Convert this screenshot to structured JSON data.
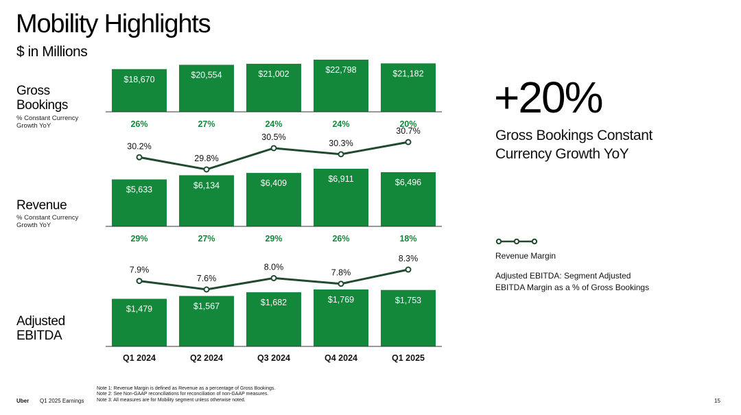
{
  "title": "Mobility Highlights",
  "subtitle": "$ in Millions",
  "colors": {
    "bar": "#13873a",
    "growth_text": "#13873a",
    "line": "#1f4a2e"
  },
  "rows": {
    "gross_bookings": {
      "label": "Gross Bookings",
      "sublabel": "% Constant Currency Growth YoY"
    },
    "revenue": {
      "label": "Revenue",
      "sublabel": "% Constant Currency Growth YoY"
    },
    "adjusted_ebitda": {
      "label": "Adjusted EBITDA"
    }
  },
  "highlight": {
    "value": "+20%",
    "caption": "Gross Bookings Constant Currency Growth YoY"
  },
  "legend": {
    "line_label": "Revenue Margin",
    "note": "Adjusted EBITDA: Segment Adjusted EBITDA Margin as a % of Gross Bookings"
  },
  "footer": {
    "brand": "Uber",
    "deck": "Q1 2025 Earnings",
    "notes": [
      "Note 1: Revenue Margin is defined as Revenue as a percentage of Gross Bookings.",
      "Note 2: See Non-GAAP reconciliations for reconciliation of non-GAAP measures.",
      "Note 3: All measures are for Mobility segment unless otherwise noted."
    ],
    "page": "15"
  },
  "chart_data": [
    {
      "type": "bar",
      "title": "Gross Bookings",
      "unit": "$ in Millions",
      "categories": [
        "Q1 2024",
        "Q2 2024",
        "Q3 2024",
        "Q4 2024",
        "Q1 2025"
      ],
      "values": [
        18670,
        20554,
        21002,
        22798,
        21182
      ],
      "value_labels": [
        "$18,670",
        "$20,554",
        "$21,002",
        "$22,798",
        "$21,182"
      ],
      "growth_labels": [
        "26%",
        "27%",
        "24%",
        "24%",
        "20%"
      ],
      "growth_title": "% Constant Currency Growth YoY"
    },
    {
      "type": "line",
      "title": "Revenue Margin",
      "categories": [
        "Q1 2024",
        "Q2 2024",
        "Q3 2024",
        "Q4 2024",
        "Q1 2025"
      ],
      "values": [
        30.2,
        29.8,
        30.5,
        30.3,
        30.7
      ],
      "value_labels": [
        "30.2%",
        "29.8%",
        "30.5%",
        "30.3%",
        "30.7%"
      ]
    },
    {
      "type": "bar",
      "title": "Revenue",
      "unit": "$ in Millions",
      "categories": [
        "Q1 2024",
        "Q2 2024",
        "Q3 2024",
        "Q4 2024",
        "Q1 2025"
      ],
      "values": [
        5633,
        6134,
        6409,
        6911,
        6496
      ],
      "value_labels": [
        "$5,633",
        "$6,134",
        "$6,409",
        "$6,911",
        "$6,496"
      ],
      "growth_labels": [
        "29%",
        "27%",
        "29%",
        "26%",
        "18%"
      ],
      "growth_title": "% Constant Currency Growth YoY"
    },
    {
      "type": "line",
      "title": "Adjusted EBITDA Margin",
      "categories": [
        "Q1 2024",
        "Q2 2024",
        "Q3 2024",
        "Q4 2024",
        "Q1 2025"
      ],
      "values": [
        7.9,
        7.6,
        8.0,
        7.8,
        8.3
      ],
      "value_labels": [
        "7.9%",
        "7.6%",
        "8.0%",
        "7.8%",
        "8.3%"
      ]
    },
    {
      "type": "bar",
      "title": "Adjusted EBITDA",
      "unit": "$ in Millions",
      "categories": [
        "Q1 2024",
        "Q2 2024",
        "Q3 2024",
        "Q4 2024",
        "Q1 2025"
      ],
      "values": [
        1479,
        1567,
        1682,
        1769,
        1753
      ],
      "value_labels": [
        "$1,479",
        "$1,567",
        "$1,682",
        "$1,769",
        "$1,753"
      ]
    }
  ]
}
